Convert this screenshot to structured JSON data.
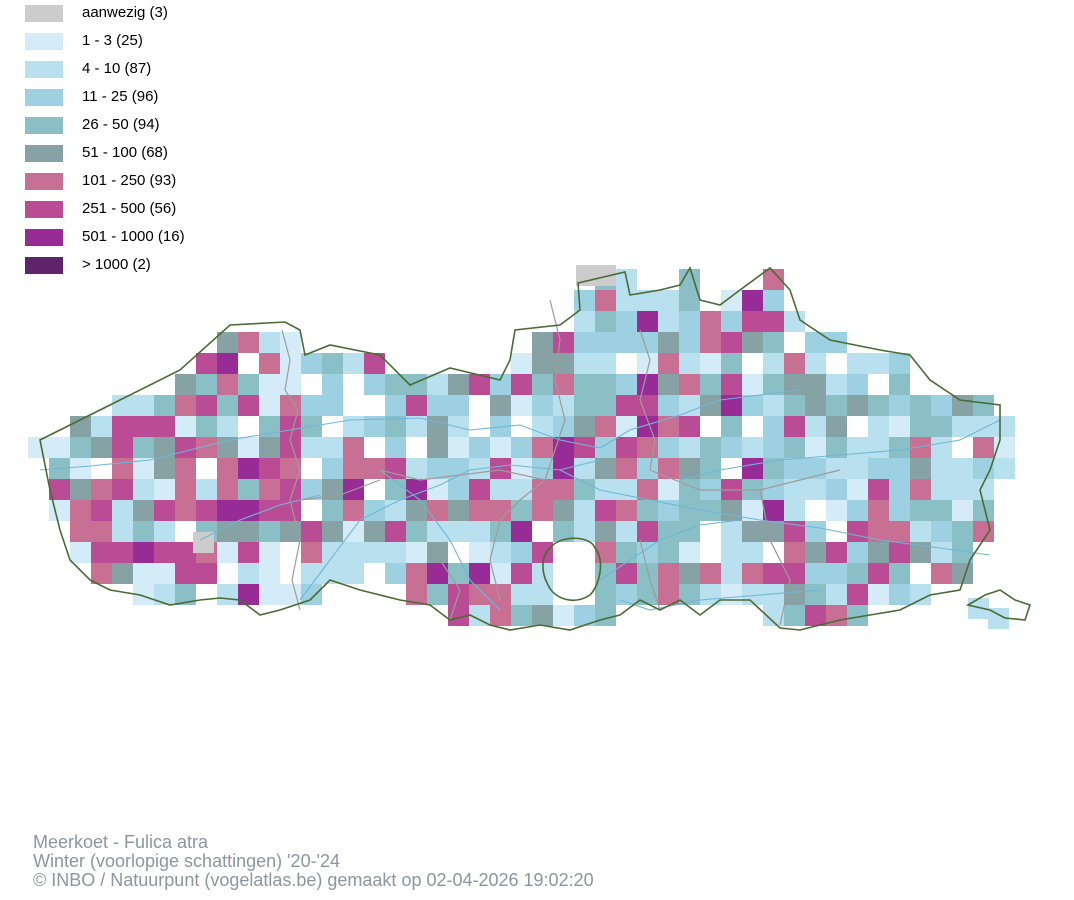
{
  "legend": {
    "items": [
      {
        "label": "aanwezig (3)",
        "color": "#cccccc"
      },
      {
        "label": "1 - 3 (25)",
        "color": "#d3ecf7"
      },
      {
        "label": "4 - 10 (87)",
        "color": "#b8e0ee"
      },
      {
        "label": "11 - 25 (96)",
        "color": "#9dd1e2"
      },
      {
        "label": "26 - 50 (94)",
        "color": "#8bbfc6"
      },
      {
        "label": "51 - 100 (68)",
        "color": "#86a2a5"
      },
      {
        "label": "101 - 250 (93)",
        "color": "#c87093"
      },
      {
        "label": "251 - 500 (56)",
        "color": "#b94c95"
      },
      {
        "label": "501 - 1000 (16)",
        "color": "#982c96"
      },
      {
        "label": "> 1000 (2)",
        "color": "#5f236c"
      }
    ]
  },
  "map": {
    "border_color": "#4a6b33",
    "internal_border_color": "#a09a9a",
    "river_color": "#6fb6d6"
  },
  "caption": {
    "species": "Meerkoet - Fulica atra",
    "period": "Winter (voorlopige schattingen) '20-'24",
    "credit": "© INBO / Natuurpunt (vogelatlas.be) gemaakt op 02-04-2026 19:02:20"
  }
}
